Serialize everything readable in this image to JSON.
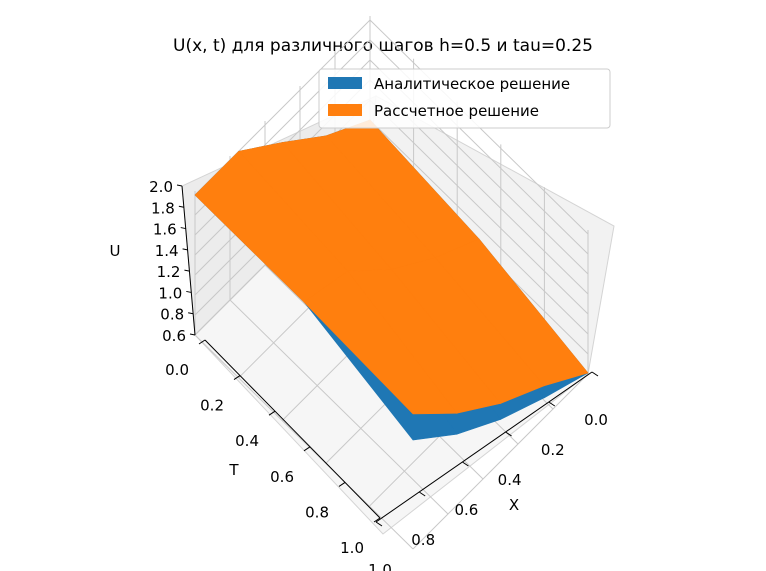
{
  "chart_data": {
    "type": "surface3d",
    "title": "U(x, t) для различного шагов h=0.5 и tau=0.25",
    "xlabel": "X",
    "ylabel": "T",
    "zlabel": "U",
    "x_ticks": [
      "0.0",
      "0.2",
      "0.4",
      "0.6",
      "0.8",
      "1.0"
    ],
    "t_ticks": [
      "0.0",
      "0.2",
      "0.4",
      "0.6",
      "0.8",
      "1.0"
    ],
    "z_ticks": [
      "0.6",
      "0.8",
      "1.0",
      "1.2",
      "1.4",
      "1.6",
      "1.8",
      "2.0"
    ],
    "xlim": [
      0,
      1
    ],
    "tlim": [
      0,
      1
    ],
    "zlim": [
      0.6,
      2.0
    ],
    "grid": true,
    "legend_position": "top-right",
    "x": [
      0,
      0.5,
      1.0
    ],
    "t": [
      0,
      0.25,
      0.5,
      0.75,
      1.0
    ],
    "series": [
      {
        "name": "Аналитическое решение",
        "color": "#1f77b4",
        "values": [
          [
            1.0,
            0.88,
            0.61
          ],
          [
            1.28,
            1.13,
            0.8
          ],
          [
            1.65,
            1.45,
            1.02
          ],
          [
            2.12,
            1.87,
            1.31
          ],
          [
            2.72,
            2.39,
            1.69
          ]
        ]
      },
      {
        "name": "Рассчетное решение",
        "color": "#ff7f0e",
        "values": [
          [
            1.0,
            0.88,
            0.61
          ],
          [
            1.28,
            1.13,
            0.92
          ],
          [
            1.65,
            1.45,
            1.18
          ],
          [
            2.12,
            1.87,
            1.52
          ],
          [
            2.72,
            2.39,
            1.95
          ]
        ]
      }
    ]
  }
}
